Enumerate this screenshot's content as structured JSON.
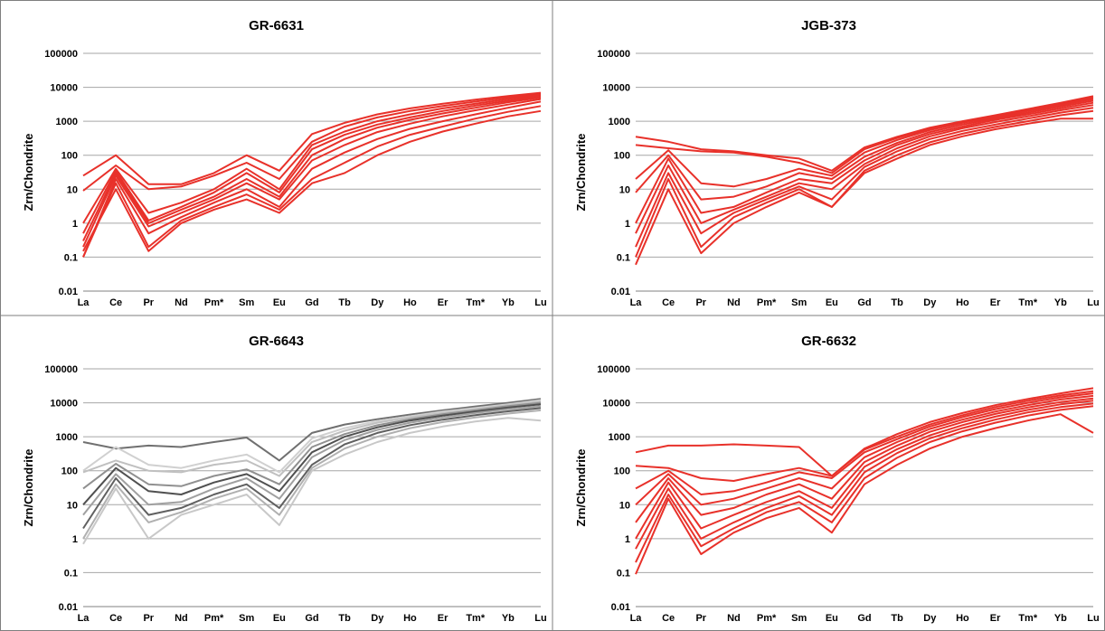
{
  "chart_data": [
    {
      "type": "line",
      "title": "GR-6631",
      "ylabel": "Zrn/Chondrite",
      "yscale": "log",
      "ylim": [
        0.01,
        100000
      ],
      "yticks": [
        "0.01",
        "0.1",
        "1",
        "10",
        "100",
        "1000",
        "10000",
        "100000"
      ],
      "categories": [
        "La",
        "Ce",
        "Pr",
        "Nd",
        "Pm*",
        "Sm",
        "Eu",
        "Gd",
        "Tb",
        "Dy",
        "Ho",
        "Er",
        "Tm*",
        "Yb",
        "Lu"
      ],
      "grid": true,
      "color": "#e8312a",
      "series": [
        {
          "values": [
            25,
            100,
            14,
            14,
            30,
            100,
            35,
            420,
            900,
            1600,
            2400,
            3300,
            4300,
            5500,
            6900
          ]
        },
        {
          "values": [
            9,
            50,
            10,
            12,
            25,
            60,
            20,
            250,
            700,
            1300,
            2000,
            2800,
            3800,
            5000,
            6500
          ]
        },
        {
          "values": [
            1,
            40,
            2,
            4,
            10,
            40,
            10,
            200,
            500,
            1000,
            1600,
            2400,
            3300,
            4500,
            6000
          ]
        },
        {
          "values": [
            0.5,
            35,
            1.2,
            3,
            8,
            30,
            8,
            150,
            400,
            800,
            1300,
            2000,
            2900,
            4000,
            5500
          ]
        },
        {
          "values": [
            0.3,
            30,
            1.0,
            2.5,
            6,
            20,
            6,
            100,
            300,
            650,
            1100,
            1700,
            2500,
            3600,
            5000
          ]
        },
        {
          "values": [
            0.2,
            25,
            0.8,
            2,
            5,
            15,
            5,
            70,
            200,
            480,
            850,
            1400,
            2100,
            3100,
            4500
          ]
        },
        {
          "values": [
            0.1,
            20,
            0.5,
            1.5,
            4,
            10,
            3,
            40,
            120,
            300,
            600,
            1000,
            1600,
            2500,
            3800
          ]
        },
        {
          "values": [
            0.1,
            15,
            0.2,
            1.2,
            3,
            7,
            2.5,
            20,
            60,
            180,
            400,
            700,
            1200,
            1900,
            2800
          ]
        },
        {
          "values": [
            0.15,
            10,
            0.15,
            1,
            2.5,
            5,
            2,
            15,
            30,
            100,
            250,
            500,
            850,
            1400,
            2000
          ]
        }
      ]
    },
    {
      "type": "line",
      "title": "JGB-373",
      "ylabel": "Zrn/Chondrite",
      "yscale": "log",
      "ylim": [
        0.01,
        100000
      ],
      "yticks": [
        "0.01",
        "0.1",
        "1",
        "10",
        "100",
        "1000",
        "10000",
        "100000"
      ],
      "categories": [
        "La",
        "Ce",
        "Pr",
        "Nd",
        "Pm*",
        "Sm",
        "Eu",
        "Gd",
        "Tb",
        "Dy",
        "Ho",
        "Er",
        "Tm*",
        "Yb",
        "Lu"
      ],
      "grid": true,
      "color": "#e8312a",
      "series": [
        {
          "values": [
            350,
            250,
            150,
            130,
            100,
            80,
            35,
            170,
            350,
            650,
            1000,
            1500,
            2300,
            3500,
            5500
          ]
        },
        {
          "values": [
            200,
            160,
            130,
            120,
            90,
            60,
            30,
            150,
            320,
            600,
            950,
            1400,
            2100,
            3200,
            5000
          ]
        },
        {
          "values": [
            20,
            140,
            15,
            12,
            20,
            40,
            25,
            120,
            280,
            550,
            900,
            1300,
            2000,
            3000,
            4500
          ]
        },
        {
          "values": [
            8,
            100,
            5,
            6,
            12,
            30,
            20,
            90,
            230,
            480,
            800,
            1200,
            1800,
            2700,
            4000
          ]
        },
        {
          "values": [
            1,
            80,
            2,
            3,
            8,
            20,
            15,
            70,
            200,
            420,
            700,
            1100,
            1600,
            2400,
            3500
          ]
        },
        {
          "values": [
            0.5,
            50,
            1,
            2.5,
            6,
            15,
            10,
            55,
            160,
            360,
            620,
            950,
            1400,
            2100,
            3000
          ]
        },
        {
          "values": [
            0.2,
            30,
            0.5,
            2,
            5,
            12,
            5,
            45,
            130,
            300,
            520,
            800,
            1200,
            1800,
            2500
          ]
        },
        {
          "values": [
            0.1,
            20,
            0.2,
            1.5,
            4,
            10,
            3,
            35,
            100,
            240,
            430,
            680,
            1000,
            1500,
            2000
          ]
        },
        {
          "values": [
            0.06,
            10,
            0.13,
            1,
            3,
            8,
            3,
            30,
            80,
            200,
            360,
            580,
            850,
            1200,
            1200
          ]
        }
      ]
    },
    {
      "type": "line",
      "title": "GR-6643",
      "ylabel": "Zrn/Chondrite",
      "yscale": "log",
      "ylim": [
        0.01,
        100000
      ],
      "yticks": [
        "0.01",
        "0.1",
        "1",
        "10",
        "100",
        "1000",
        "10000",
        "100000"
      ],
      "categories": [
        "La",
        "Ce",
        "Pr",
        "Nd",
        "Pm*",
        "Sm",
        "Eu",
        "Gd",
        "Tb",
        "Dy",
        "Ho",
        "Er",
        "Tm*",
        "Yb",
        "Lu"
      ],
      "grid": true,
      "color": "#808080",
      "series": [
        {
          "values": [
            700,
            450,
            550,
            500,
            700,
            950,
            200,
            1300,
            2300,
            3300,
            4500,
            6000,
            7800,
            10000,
            13000
          ],
          "color": "#707070"
        },
        {
          "values": [
            100,
            500,
            150,
            120,
            200,
            300,
            90,
            900,
            1800,
            2900,
            4000,
            5500,
            7000,
            9000,
            12000
          ],
          "color": "#d0d0d0"
        },
        {
          "values": [
            90,
            200,
            100,
            90,
            150,
            200,
            70,
            700,
            1500,
            2600,
            3700,
            5000,
            6500,
            8500,
            11000
          ],
          "color": "#c0c0c0"
        },
        {
          "values": [
            30,
            160,
            40,
            35,
            70,
            110,
            40,
            500,
            1200,
            2200,
            3300,
            4600,
            6000,
            8000,
            10000
          ],
          "color": "#909090"
        },
        {
          "values": [
            10,
            120,
            25,
            20,
            45,
            80,
            25,
            350,
            1000,
            1900,
            3000,
            4200,
            5500,
            7200,
            9000
          ],
          "color": "#505050"
        },
        {
          "values": [
            5,
            80,
            10,
            12,
            30,
            60,
            15,
            250,
            800,
            1600,
            2600,
            3700,
            5000,
            6500,
            8000
          ],
          "color": "#a0a0a0"
        },
        {
          "values": [
            2,
            60,
            5,
            8,
            20,
            40,
            8,
            150,
            600,
            1300,
            2200,
            3200,
            4300,
            5600,
            7000
          ],
          "color": "#606060"
        },
        {
          "values": [
            1,
            40,
            3,
            6,
            15,
            30,
            5,
            120,
            450,
            1000,
            1800,
            2700,
            3700,
            4800,
            6000
          ],
          "color": "#b0b0b0"
        },
        {
          "values": [
            0.7,
            30,
            1,
            5,
            10,
            20,
            2.5,
            100,
            300,
            700,
            1300,
            2000,
            2800,
            3600,
            3000
          ],
          "color": "#c8c8c8"
        }
      ]
    },
    {
      "type": "line",
      "title": "GR-6632",
      "ylabel": "Zrn/Chondrite",
      "yscale": "log",
      "ylim": [
        0.01,
        100000
      ],
      "yticks": [
        "0.01",
        "0.1",
        "1",
        "10",
        "100",
        "1000",
        "10000",
        "100000"
      ],
      "categories": [
        "La",
        "Ce",
        "Pr",
        "Nd",
        "Pm*",
        "Sm",
        "Eu",
        "Gd",
        "Tb",
        "Dy",
        "Ho",
        "Er",
        "Tm*",
        "Yb",
        "Lu"
      ],
      "grid": true,
      "color": "#e8312a",
      "series": [
        {
          "values": [
            350,
            550,
            550,
            600,
            550,
            500,
            70,
            450,
            1200,
            2700,
            5000,
            8500,
            13000,
            19000,
            27000
          ]
        },
        {
          "values": [
            140,
            120,
            60,
            50,
            80,
            120,
            70,
            420,
            1000,
            2300,
            4300,
            7500,
            11500,
            16500,
            22000
          ]
        },
        {
          "values": [
            30,
            100,
            20,
            25,
            45,
            90,
            60,
            350,
            850,
            2000,
            3800,
            6500,
            10000,
            14500,
            19000
          ]
        },
        {
          "values": [
            10,
            80,
            10,
            15,
            30,
            60,
            30,
            250,
            700,
            1700,
            3200,
            5500,
            8500,
            12500,
            16000
          ]
        },
        {
          "values": [
            3,
            60,
            5,
            8,
            20,
            40,
            15,
            180,
            550,
            1400,
            2700,
            4700,
            7300,
            10500,
            13500
          ]
        },
        {
          "values": [
            1,
            45,
            2,
            5,
            12,
            25,
            8,
            130,
            430,
            1100,
            2200,
            3900,
            6200,
            9000,
            11500
          ]
        },
        {
          "values": [
            0.5,
            30,
            1,
            3,
            8,
            18,
            5,
            90,
            330,
            900,
            1800,
            3200,
            5200,
            7500,
            9500
          ]
        },
        {
          "values": [
            0.2,
            20,
            0.6,
            2,
            6,
            12,
            3,
            60,
            240,
            700,
            1450,
            2600,
            4200,
            6200,
            8000
          ]
        },
        {
          "values": [
            0.09,
            15,
            0.35,
            1.5,
            4,
            8,
            1.5,
            40,
            150,
            450,
            1000,
            1800,
            3000,
            4600,
            1300
          ]
        }
      ]
    }
  ]
}
